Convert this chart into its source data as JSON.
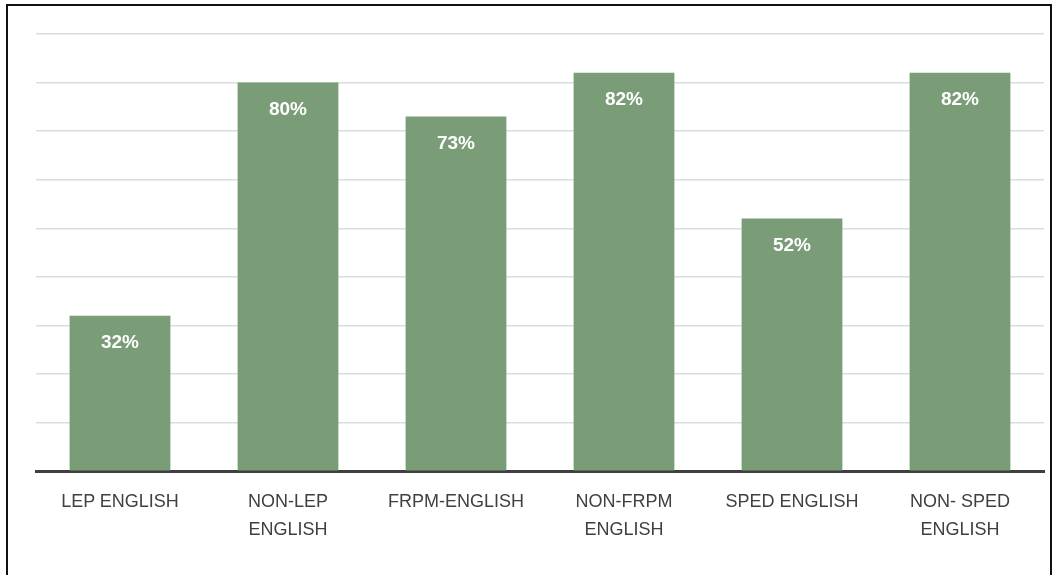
{
  "chart_data": {
    "type": "bar",
    "categories": [
      "LEP ENGLISH",
      "NON-LEP ENGLISH",
      "FRPM-ENGLISH",
      "NON-FRPM ENGLISH",
      "SPED ENGLISH",
      "NON- SPED ENGLISH"
    ],
    "values": [
      32,
      80,
      73,
      82,
      52,
      82
    ],
    "value_labels": [
      "32%",
      "80%",
      "73%",
      "82%",
      "52%",
      "82%"
    ],
    "color": "#7a9d78",
    "ylim": [
      0,
      90
    ],
    "yticks": [
      {
        "value": 0,
        "label": null
      },
      {
        "value": 10,
        "label": null
      },
      {
        "value": 20,
        "label": null
      },
      {
        "value": 30,
        "label": null
      },
      {
        "value": 40,
        "label": null
      },
      {
        "value": 50,
        "label": null
      },
      {
        "value": 60,
        "label": null
      },
      {
        "value": 70,
        "label": null
      },
      {
        "value": 80,
        "label": null
      },
      {
        "value": 90,
        "label": null
      }
    ],
    "grid": "y",
    "tick_labels": "x"
  }
}
